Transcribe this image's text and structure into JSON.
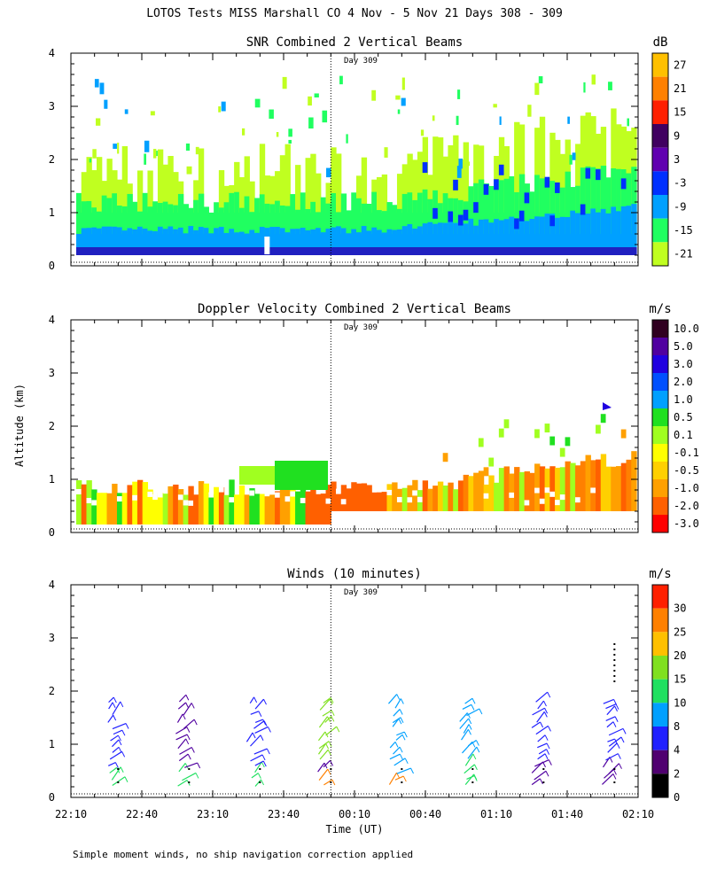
{
  "figure": {
    "title": "LOTOS Tests MISS Marshall CO   4 Nov -  5 Nov 21 Days 308 - 309",
    "y_axis_label": "Altitude (km)",
    "x_axis_label": "Time (UT)",
    "footnote": "Simple moment winds, no ship navigation correction applied",
    "day_marker": "Day 309",
    "day_marker_time": "00:00"
  },
  "chart_data": [
    {
      "id": "snr",
      "type": "heatmap",
      "title": "SNR Combined 2 Vertical Beams",
      "xlabel": "Time (UT)",
      "ylabel": "Altitude (km)",
      "x_ticks": [
        "22:10",
        "22:40",
        "23:10",
        "23:40",
        "00:10",
        "00:40",
        "01:10",
        "01:40",
        "02:10"
      ],
      "y_ticks": [
        "0",
        "1",
        "2",
        "3",
        "4"
      ],
      "ylim": [
        0,
        4
      ],
      "colorbar": {
        "unit": "dB",
        "labels": [
          "27",
          "21",
          "15",
          "9",
          "3",
          "-3",
          "-9",
          "-15",
          "-21"
        ],
        "colors": [
          "#ffc000",
          "#ff8000",
          "#ff2000",
          "#400060",
          "#6000b0",
          "#0030ff",
          "#00a0ff",
          "#20ff60",
          "#c0ff20"
        ]
      },
      "layers_km": [
        {
          "from": 0.2,
          "to": 0.35,
          "color": "#2020c0",
          "label": "-3 to 3 dB"
        },
        {
          "from": 0.35,
          "to": 0.65,
          "color": "#00a0ff",
          "label": "-9 to -3 dB"
        },
        {
          "from": 0.65,
          "to": 1.2,
          "color": "#20ff60",
          "label": "-15 to -9 dB"
        },
        {
          "from": 1.2,
          "to": 1.9,
          "color": "#c0ff20",
          "label": "-21 to -15 dB"
        }
      ]
    },
    {
      "id": "doppler",
      "type": "heatmap",
      "title": "Doppler Velocity Combined 2 Vertical Beams",
      "xlabel": "Time (UT)",
      "ylabel": "Altitude (km)",
      "x_ticks": [
        "22:10",
        "22:40",
        "23:10",
        "23:40",
        "00:10",
        "00:40",
        "01:10",
        "01:40",
        "02:10"
      ],
      "y_ticks": [
        "0",
        "1",
        "2",
        "3",
        "4"
      ],
      "ylim": [
        0,
        4
      ],
      "colorbar": {
        "unit": "m/s",
        "labels": [
          "10.0",
          "5.0",
          "3.0",
          "2.0",
          "1.0",
          "0.5",
          "0.1",
          "-0.1",
          "-0.5",
          "-1.0",
          "-2.0",
          "-3.0"
        ],
        "colors": [
          "#300020",
          "#5000a0",
          "#2000e0",
          "#0050ff",
          "#00a0ff",
          "#20e020",
          "#a0ff20",
          "#ffff00",
          "#ffd000",
          "#ffa000",
          "#ff6000",
          "#ff0000"
        ]
      }
    },
    {
      "id": "winds",
      "type": "scatter",
      "title": "Winds (10 minutes)",
      "xlabel": "Time (UT)",
      "ylabel": "Altitude (km)",
      "x_ticks": [
        "22:10",
        "22:40",
        "23:10",
        "23:40",
        "00:10",
        "00:40",
        "01:10",
        "01:40",
        "02:10"
      ],
      "y_ticks": [
        "0",
        "1",
        "2",
        "3",
        "4"
      ],
      "ylim": [
        0,
        4
      ],
      "colorbar": {
        "unit": "m/s",
        "labels": [
          "30",
          "25",
          "20",
          "15",
          "10",
          "8",
          "4",
          "2",
          "0"
        ],
        "colors": [
          "#ff2000",
          "#ff8000",
          "#ffc000",
          "#80e020",
          "#20e060",
          "#00a0ff",
          "#2020ff",
          "#500070",
          "#000000"
        ]
      },
      "profile_times": [
        "22:30",
        "23:00",
        "23:30",
        "00:00",
        "00:30",
        "01:00",
        "01:30",
        "02:00"
      ]
    }
  ]
}
